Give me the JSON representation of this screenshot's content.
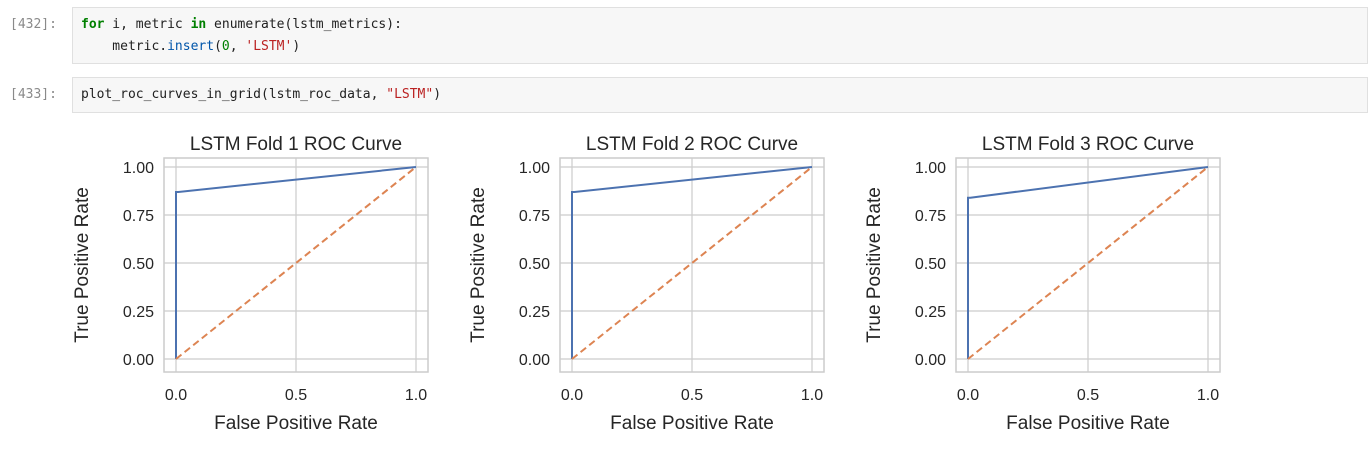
{
  "cells": [
    {
      "prompt": "[432]:",
      "code": {
        "l1_kw_for": "for",
        "l1_mid": " i, metric ",
        "l1_kw_in": "in",
        "l1_tail": " enumerate(lstm_metrics):",
        "l2_indent": "    metric.",
        "l2_fn": "insert",
        "l2_open": "(",
        "l2_num": "0",
        "l2_sep": ", ",
        "l2_str": "'LSTM'",
        "l2_close": ")"
      }
    },
    {
      "prompt": "[433]:",
      "code": {
        "l1_head": "plot_roc_curves_in_grid(lstm_roc_data, ",
        "l1_str": "\"LSTM\"",
        "l1_close": ")"
      }
    }
  ],
  "colors": {
    "roc_curve": "#4c72b0",
    "diagonal": "#dd8452",
    "grid": "#cccccc",
    "axes_border": "#cccccc"
  },
  "chart_data": [
    {
      "type": "line",
      "title": "LSTM Fold 1 ROC Curve",
      "xlabel": "False Positive Rate",
      "ylabel": "True Positive Rate",
      "xlim": [
        0.0,
        1.0
      ],
      "ylim": [
        0.0,
        1.0
      ],
      "xticks": [
        "0.0",
        "0.5",
        "1.0"
      ],
      "yticks": [
        "0.00",
        "0.25",
        "0.50",
        "0.75",
        "1.00"
      ],
      "grid": true,
      "series": [
        {
          "x": [
            0.0,
            0.0,
            0.01,
            1.0
          ],
          "y": [
            0.0,
            0.87,
            0.87,
            1.0
          ],
          "style": "solid"
        },
        {
          "x": [
            0.0,
            1.0
          ],
          "y": [
            0.0,
            1.0
          ],
          "style": "dashed"
        }
      ]
    },
    {
      "type": "line",
      "title": "LSTM Fold 2 ROC Curve",
      "xlabel": "False Positive Rate",
      "ylabel": "True Positive Rate",
      "xlim": [
        0.0,
        1.0
      ],
      "ylim": [
        0.0,
        1.0
      ],
      "xticks": [
        "0.0",
        "0.5",
        "1.0"
      ],
      "yticks": [
        "0.00",
        "0.25",
        "0.50",
        "0.75",
        "1.00"
      ],
      "grid": true,
      "series": [
        {
          "x": [
            0.0,
            0.0,
            0.01,
            1.0
          ],
          "y": [
            0.0,
            0.87,
            0.87,
            1.0
          ],
          "style": "solid"
        },
        {
          "x": [
            0.0,
            1.0
          ],
          "y": [
            0.0,
            1.0
          ],
          "style": "dashed"
        }
      ]
    },
    {
      "type": "line",
      "title": "LSTM Fold 3 ROC Curve",
      "xlabel": "False Positive Rate",
      "ylabel": "True Positive Rate",
      "xlim": [
        0.0,
        1.0
      ],
      "ylim": [
        0.0,
        1.0
      ],
      "xticks": [
        "0.0",
        "0.5",
        "1.0"
      ],
      "yticks": [
        "0.00",
        "0.25",
        "0.50",
        "0.75",
        "1.00"
      ],
      "grid": true,
      "series": [
        {
          "x": [
            0.0,
            0.0,
            0.01,
            1.0
          ],
          "y": [
            0.0,
            0.84,
            0.84,
            1.0
          ],
          "style": "solid"
        },
        {
          "x": [
            0.0,
            1.0
          ],
          "y": [
            0.0,
            1.0
          ],
          "style": "dashed"
        }
      ]
    }
  ]
}
